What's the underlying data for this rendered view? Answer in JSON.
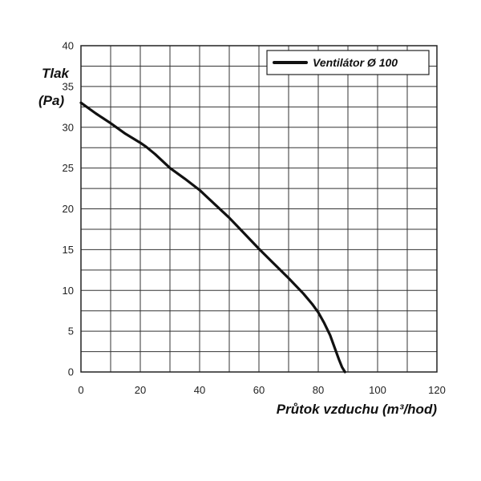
{
  "chart_data": {
    "type": "line",
    "x_ticks": [
      "0",
      "20",
      "40",
      "60",
      "80",
      "100",
      "120"
    ],
    "y_ticks": [
      "0",
      "5",
      "10",
      "15",
      "20",
      "25",
      "30",
      "35",
      "40"
    ],
    "xlim": [
      0,
      120
    ],
    "ylim": [
      0,
      40
    ],
    "x_grid_step": 10,
    "y_grid_step": 2.5,
    "grid": true,
    "legend_position": "top-right",
    "ylabel_line1": "Tlak",
    "ylabel_line2": "(Pa)",
    "xlabel": "Průtok vzduchu (m³/hod)",
    "series": [
      {
        "name": "Ventilátor Ø 100",
        "color": "#111111",
        "x": [
          0,
          5,
          10,
          15,
          20,
          22,
          25,
          30,
          35,
          40,
          45,
          50,
          55,
          60,
          65,
          70,
          75,
          78,
          80,
          82,
          84,
          86,
          87,
          88,
          89
        ],
        "y": [
          33,
          31.7,
          30.5,
          29.2,
          28.1,
          27.6,
          26.7,
          25,
          23.7,
          22.3,
          20.6,
          18.9,
          17,
          15.1,
          13.3,
          11.5,
          9.6,
          8.3,
          7.3,
          6,
          4.5,
          2.5,
          1.5,
          0.6,
          0
        ]
      }
    ]
  }
}
